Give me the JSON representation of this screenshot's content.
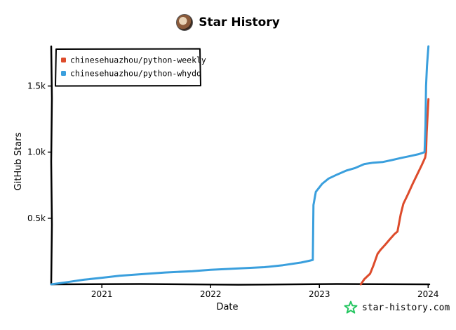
{
  "header": {
    "title": "Star History",
    "avatar_icon": "owl-avatar-icon"
  },
  "footer": {
    "text": "star-history.com",
    "icon": "star-logo-icon",
    "icon_color": "#22c55e"
  },
  "chart_data": {
    "type": "line",
    "title": "Star History",
    "xlabel": "Date",
    "ylabel": "GitHub Stars",
    "xlim": [
      "2020-07-15",
      "2024-01-05"
    ],
    "ylim": [
      0,
      1800
    ],
    "x_ticks": [
      {
        "label": "2021",
        "date": "2021-01-01"
      },
      {
        "label": "2022",
        "date": "2022-01-01"
      },
      {
        "label": "2023",
        "date": "2023-01-01"
      },
      {
        "label": "2024",
        "date": "2024-01-01"
      }
    ],
    "y_ticks": [
      {
        "label": "0.5k",
        "value": 500
      },
      {
        "label": "1.0k",
        "value": 1000
      },
      {
        "label": "1.5k",
        "value": 1500
      }
    ],
    "grid": false,
    "legend_position": "top-left",
    "series": [
      {
        "name": "chinesehuazhou/python-weekly",
        "color": "#dd4b2b",
        "points": [
          [
            "2023-05-20",
            0
          ],
          [
            "2023-06-01",
            40
          ],
          [
            "2023-06-20",
            80
          ],
          [
            "2023-07-01",
            140
          ],
          [
            "2023-07-15",
            230
          ],
          [
            "2023-07-25",
            260
          ],
          [
            "2023-08-10",
            300
          ],
          [
            "2023-08-25",
            340
          ],
          [
            "2023-09-10",
            380
          ],
          [
            "2023-09-20",
            400
          ],
          [
            "2023-10-01",
            530
          ],
          [
            "2023-10-10",
            610
          ],
          [
            "2023-10-25",
            680
          ],
          [
            "2023-11-10",
            760
          ],
          [
            "2023-11-25",
            830
          ],
          [
            "2023-12-10",
            900
          ],
          [
            "2023-12-22",
            960
          ],
          [
            "2023-12-25",
            1000
          ],
          [
            "2023-12-27",
            1150
          ],
          [
            "2024-01-02",
            1400
          ]
        ]
      },
      {
        "name": "chinesehuazhou/python-whydo",
        "color": "#3a9fdd",
        "points": [
          [
            "2020-07-15",
            0
          ],
          [
            "2020-09-01",
            15
          ],
          [
            "2020-11-01",
            35
          ],
          [
            "2021-01-01",
            50
          ],
          [
            "2021-03-01",
            65
          ],
          [
            "2021-05-01",
            75
          ],
          [
            "2021-08-01",
            90
          ],
          [
            "2021-11-01",
            100
          ],
          [
            "2022-01-01",
            110
          ],
          [
            "2022-04-01",
            120
          ],
          [
            "2022-07-01",
            130
          ],
          [
            "2022-09-01",
            145
          ],
          [
            "2022-11-01",
            165
          ],
          [
            "2022-12-01",
            180
          ],
          [
            "2022-12-10",
            185
          ],
          [
            "2022-12-12",
            600
          ],
          [
            "2022-12-20",
            700
          ],
          [
            "2023-01-10",
            760
          ],
          [
            "2023-02-01",
            800
          ],
          [
            "2023-03-01",
            830
          ],
          [
            "2023-04-01",
            860
          ],
          [
            "2023-05-01",
            880
          ],
          [
            "2023-06-01",
            910
          ],
          [
            "2023-07-01",
            920
          ],
          [
            "2023-08-01",
            925
          ],
          [
            "2023-09-01",
            940
          ],
          [
            "2023-10-01",
            955
          ],
          [
            "2023-11-01",
            970
          ],
          [
            "2023-12-01",
            985
          ],
          [
            "2023-12-20",
            1000
          ],
          [
            "2023-12-23",
            1200
          ],
          [
            "2023-12-25",
            1500
          ],
          [
            "2023-12-28",
            1650
          ],
          [
            "2024-01-02",
            1800
          ]
        ]
      }
    ]
  }
}
